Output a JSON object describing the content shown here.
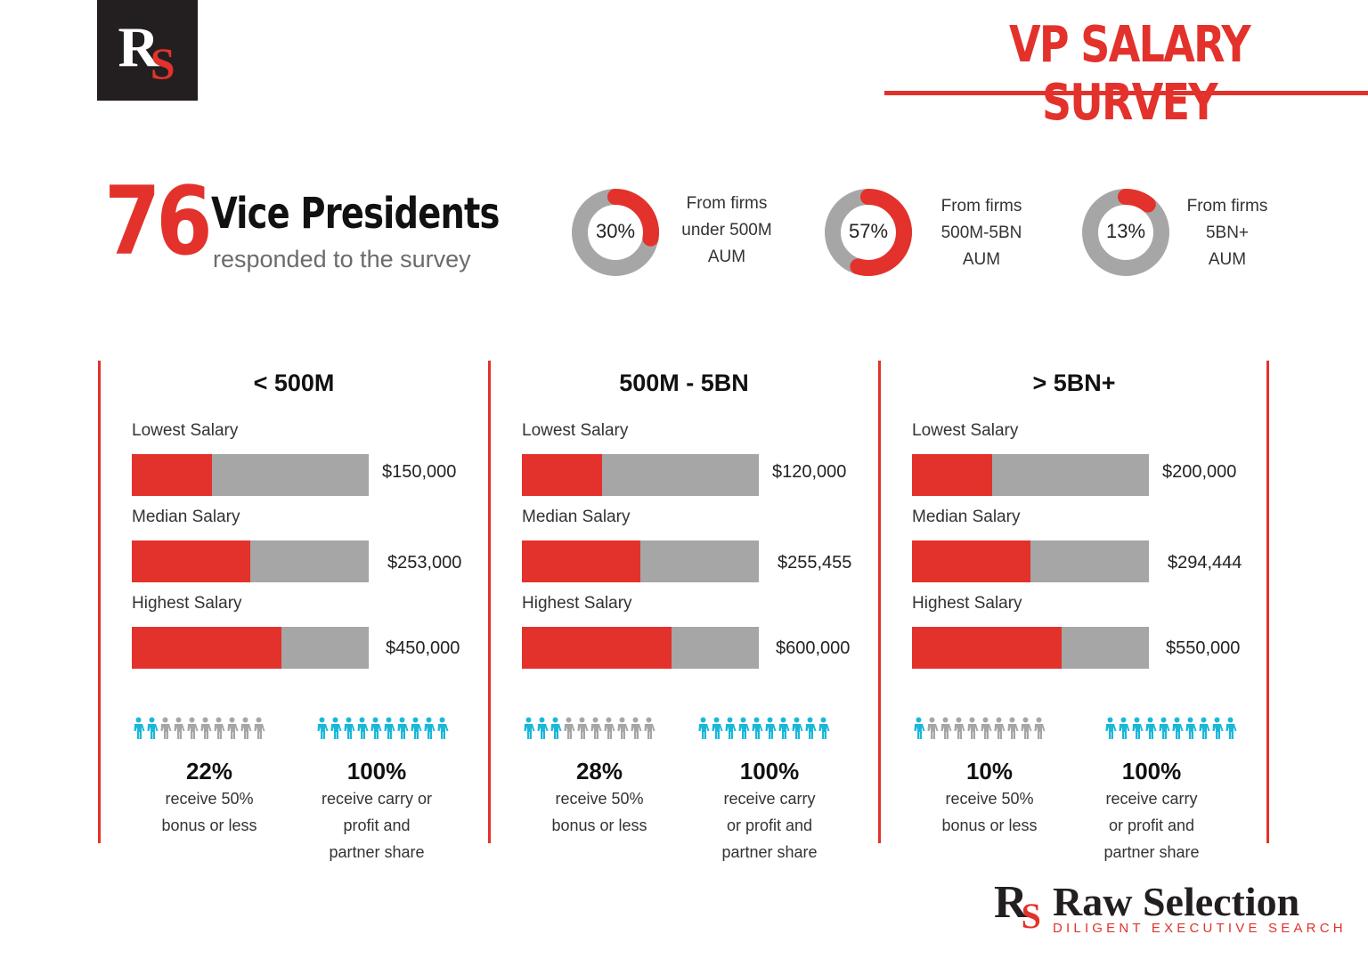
{
  "logo": {
    "letter_main": "R",
    "letter_accent": "S"
  },
  "header": {
    "title": "VP SALARY SURVEY"
  },
  "headline": {
    "count": "76",
    "title": "Vice Presidents",
    "subtitle": "responded to the survey"
  },
  "colors": {
    "accent": "#e3322b",
    "neutral": "#a6a6a6",
    "people_highlight": "#1ab8d8",
    "people_muted": "#a6a6a6",
    "dark": "#231f20"
  },
  "donuts": [
    {
      "value_pct": 30,
      "label": "30%",
      "desc": [
        "From firms",
        "under 500M",
        "AUM"
      ]
    },
    {
      "value_pct": 57,
      "label": "57%",
      "desc": [
        "From firms",
        "500M-5BN",
        "AUM"
      ]
    },
    {
      "value_pct": 13,
      "label": "13%",
      "desc": [
        "From firms",
        "5BN+",
        "AUM"
      ]
    }
  ],
  "panels": [
    {
      "title": "< 500M",
      "rows": [
        {
          "label": "Lowest Salary",
          "value": "$150,000",
          "fill_pct": 34
        },
        {
          "label": "Median Salary",
          "value": "$253,000",
          "fill_pct": 50
        },
        {
          "label": "Highest Salary",
          "value": "$450,000",
          "fill_pct": 63
        }
      ],
      "stats": [
        {
          "pct": "22%",
          "desc": [
            "receive 50%",
            "bonus or less"
          ],
          "highlighted": 2,
          "total": 10
        },
        {
          "pct": "100%",
          "desc": [
            "receive carry or",
            "profit and",
            "partner share"
          ],
          "highlighted": 10,
          "total": 10
        }
      ]
    },
    {
      "title": "500M - 5BN",
      "rows": [
        {
          "label": "Lowest Salary",
          "value": "$120,000",
          "fill_pct": 34
        },
        {
          "label": "Median Salary",
          "value": "$255,455",
          "fill_pct": 50
        },
        {
          "label": "Highest Salary",
          "value": "$600,000",
          "fill_pct": 63
        }
      ],
      "stats": [
        {
          "pct": "28%",
          "desc": [
            "receive 50%",
            "bonus or less"
          ],
          "highlighted": 3,
          "total": 10
        },
        {
          "pct": "100%",
          "desc": [
            "receive carry",
            "or profit and",
            "partner share"
          ],
          "highlighted": 10,
          "total": 10
        }
      ]
    },
    {
      "title": "> 5BN+",
      "rows": [
        {
          "label": "Lowest Salary",
          "value": "$200,000",
          "fill_pct": 34
        },
        {
          "label": "Median Salary",
          "value": "$294,444",
          "fill_pct": 50
        },
        {
          "label": "Highest Salary",
          "value": "$550,000",
          "fill_pct": 63
        }
      ],
      "stats": [
        {
          "pct": "10%",
          "desc": [
            "receive 50%",
            "bonus or less"
          ],
          "highlighted": 1,
          "total": 10
        },
        {
          "pct": "100%",
          "desc": [
            "receive carry",
            "or profit and",
            "partner share"
          ],
          "highlighted": 10,
          "total": 10
        }
      ]
    }
  ],
  "footer": {
    "brand": "Raw Selection",
    "tagline": "DILIGENT EXECUTIVE SEARCH"
  }
}
